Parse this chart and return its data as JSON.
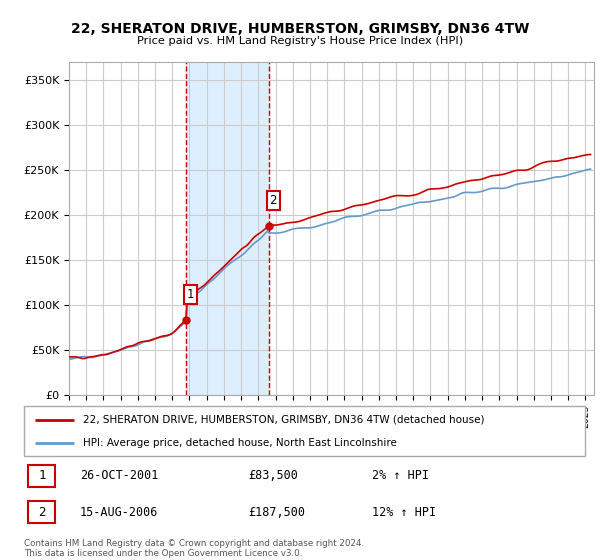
{
  "title": "22, SHERATON DRIVE, HUMBERSTON, GRIMSBY, DN36 4TW",
  "subtitle": "Price paid vs. HM Land Registry's House Price Index (HPI)",
  "ylabel_ticks": [
    "£0",
    "£50K",
    "£100K",
    "£150K",
    "£200K",
    "£250K",
    "£300K",
    "£350K"
  ],
  "ytick_values": [
    0,
    50000,
    100000,
    150000,
    200000,
    250000,
    300000,
    350000
  ],
  "ylim": [
    0,
    370000
  ],
  "xlim_start": 1995.0,
  "xlim_end": 2025.5,
  "purchase1_x": 2001.82,
  "purchase1_y": 83500,
  "purchase2_x": 2006.62,
  "purchase2_y": 187500,
  "marker_color": "#cc0000",
  "line_color_property": "#cc0000",
  "line_color_hpi": "#6699cc",
  "shade_color": "#ddeeff",
  "vline_color": "#cc0000",
  "grid_color": "#cccccc",
  "legend_label_property": "22, SHERATON DRIVE, HUMBERSTON, GRIMSBY, DN36 4TW (detached house)",
  "legend_label_hpi": "HPI: Average price, detached house, North East Lincolnshire",
  "purchase1_date": "26-OCT-2001",
  "purchase1_price": "£83,500",
  "purchase1_hpi": "2% ↑ HPI",
  "purchase2_date": "15-AUG-2006",
  "purchase2_price": "£187,500",
  "purchase2_hpi": "12% ↑ HPI",
  "footer": "Contains HM Land Registry data © Crown copyright and database right 2024.\nThis data is licensed under the Open Government Licence v3.0."
}
